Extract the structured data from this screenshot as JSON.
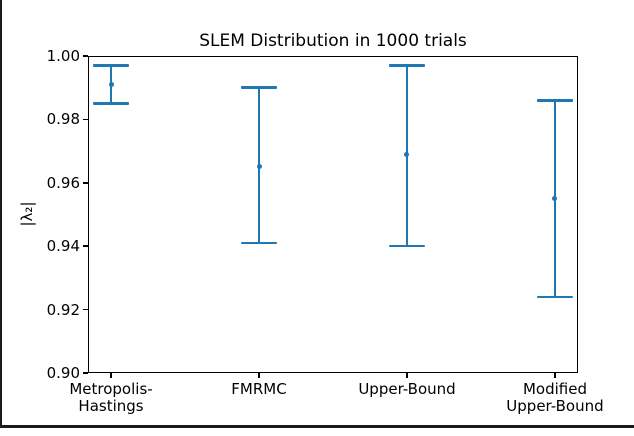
{
  "window": {
    "background": "#ffffff",
    "border_color": "#1a1a1a"
  },
  "chart_data": {
    "type": "errorbar",
    "title": "SLEM Distribution in 1000 trials",
    "xlabel": "",
    "ylabel": "|λ₂|",
    "categories": [
      "Metropolis-\nHastings",
      "FMRMC",
      "Upper-Bound",
      "Modified\nUpper-Bound"
    ],
    "series": [
      {
        "name": "SLEM",
        "marker": "point",
        "color": "#1f77b4",
        "means": [
          0.991,
          0.965,
          0.969,
          0.955
        ],
        "upper": [
          0.997,
          0.99,
          0.997,
          0.986
        ],
        "lower": [
          0.985,
          0.941,
          0.94,
          0.924
        ]
      }
    ],
    "ylim": [
      0.9,
      1.0
    ],
    "yticks": [
      1.0,
      0.98,
      0.96,
      0.94,
      0.92,
      0.9
    ],
    "ytick_labels": [
      "1.00",
      "0.98",
      "0.96",
      "0.94",
      "0.92",
      "0.90"
    ],
    "grid": false,
    "legend_position": "none",
    "spine_color": "#000000"
  }
}
